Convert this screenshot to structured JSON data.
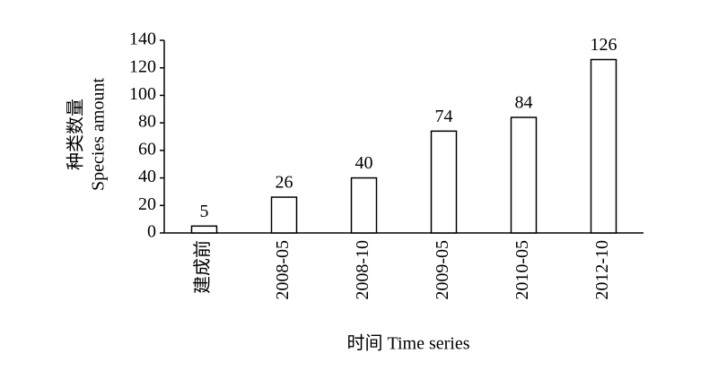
{
  "chart_data": {
    "type": "bar",
    "categories": [
      "建成前",
      "2008-05",
      "2008-10",
      "2009-05",
      "2010-05",
      "2012-10"
    ],
    "values": [
      5,
      26,
      40,
      74,
      84,
      126
    ],
    "color": "#ffffff",
    "ylim": [
      0,
      140
    ],
    "yticks": [
      0,
      20,
      40,
      60,
      80,
      100,
      120,
      140
    ],
    "ylabel": [
      "种类数量",
      "Species amount"
    ],
    "xlabel": "时间 Time series",
    "grid": false
  }
}
